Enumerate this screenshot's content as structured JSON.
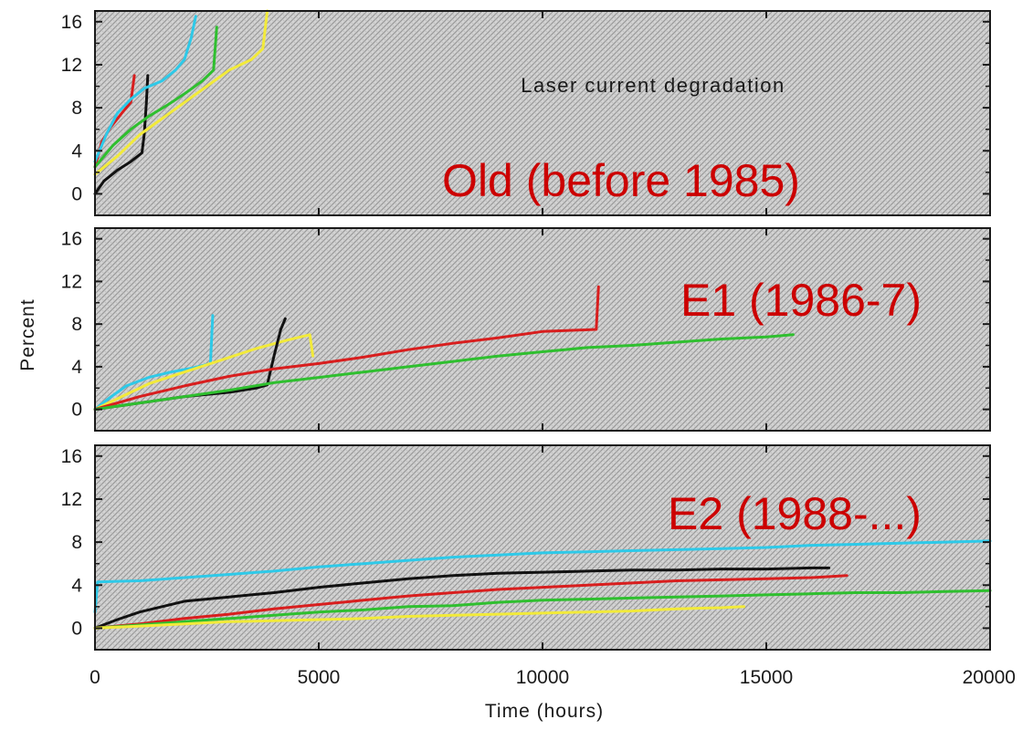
{
  "chart_data": {
    "type": "line",
    "xlabel": "Time (hours)",
    "ylabel": "Percent",
    "xlim": [
      0,
      20000
    ],
    "x_ticks": [
      0,
      5000,
      10000,
      15000,
      20000
    ],
    "ylim": [
      -2,
      17
    ],
    "y_ticks": [
      0,
      4,
      8,
      12,
      16
    ],
    "background": "grey hatched",
    "colors": {
      "red": "#d81e1e",
      "cyan": "#2ec9e8",
      "green": "#2fbf2f",
      "yellow": "#f2ea3a",
      "black": "#111111",
      "overlay": "#cc0000"
    },
    "panels": [
      {
        "annotation": "Laser current degradation",
        "overlay_label": "Old (before 1985)",
        "series": [
          {
            "color": "#111111",
            "points": [
              [
                0,
                0
              ],
              [
                200,
                1.2
              ],
              [
                500,
                2.2
              ],
              [
                800,
                3
              ],
              [
                1050,
                3.8
              ],
              [
                1100,
                5.5
              ],
              [
                1150,
                8.5
              ],
              [
                1180,
                11
              ]
            ]
          },
          {
            "color": "#d81e1e",
            "points": [
              [
                0,
                2.5
              ],
              [
                150,
                4.8
              ],
              [
                350,
                6.2
              ],
              [
                600,
                7.5
              ],
              [
                800,
                8.5
              ],
              [
                880,
                11
              ]
            ]
          },
          {
            "color": "#2ec9e8",
            "points": [
              [
                0,
                3
              ],
              [
                250,
                5.5
              ],
              [
                500,
                7.5
              ],
              [
                800,
                8.8
              ],
              [
                1100,
                9.8
              ],
              [
                1500,
                10.5
              ],
              [
                1800,
                11.5
              ],
              [
                2000,
                12.5
              ],
              [
                2150,
                14.5
              ],
              [
                2250,
                16.5
              ]
            ]
          },
          {
            "color": "#2fbf2f",
            "points": [
              [
                0,
                2.5
              ],
              [
                400,
                4.5
              ],
              [
                800,
                6
              ],
              [
                1200,
                7.2
              ],
              [
                1600,
                8.2
              ],
              [
                2000,
                9.3
              ],
              [
                2400,
                10.5
              ],
              [
                2650,
                11.5
              ],
              [
                2720,
                15.5
              ]
            ]
          },
          {
            "color": "#f2ea3a",
            "points": [
              [
                0,
                1.8
              ],
              [
                500,
                3.5
              ],
              [
                1000,
                5.5
              ],
              [
                1500,
                7
              ],
              [
                2000,
                8.5
              ],
              [
                2500,
                10
              ],
              [
                3000,
                11.5
              ],
              [
                3500,
                12.5
              ],
              [
                3750,
                13.5
              ],
              [
                3850,
                17
              ]
            ]
          }
        ]
      },
      {
        "overlay_label": "E1 (1986-7)",
        "series": [
          {
            "color": "#2ec9e8",
            "points": [
              [
                0,
                0
              ],
              [
                300,
                1
              ],
              [
                700,
                2.2
              ],
              [
                1200,
                3
              ],
              [
                1700,
                3.5
              ],
              [
                2200,
                3.9
              ],
              [
                2580,
                4.3
              ],
              [
                2630,
                8.8
              ]
            ]
          },
          {
            "color": "#f2ea3a",
            "points": [
              [
                0,
                0
              ],
              [
                600,
                1.2
              ],
              [
                1200,
                2.4
              ],
              [
                2000,
                3.5
              ],
              [
                2800,
                4.6
              ],
              [
                3600,
                5.7
              ],
              [
                4300,
                6.5
              ],
              [
                4800,
                7
              ],
              [
                4870,
                5
              ]
            ]
          },
          {
            "color": "#111111",
            "points": [
              [
                0,
                0
              ],
              [
                1000,
                0.6
              ],
              [
                2000,
                1.2
              ],
              [
                3000,
                1.6
              ],
              [
                3600,
                2
              ],
              [
                3850,
                2.3
              ],
              [
                4000,
                5
              ],
              [
                4150,
                7.5
              ],
              [
                4250,
                8.5
              ]
            ]
          },
          {
            "color": "#d81e1e",
            "points": [
              [
                0,
                0
              ],
              [
                1000,
                1.2
              ],
              [
                2000,
                2.2
              ],
              [
                3000,
                3.1
              ],
              [
                4000,
                3.8
              ],
              [
                5000,
                4.3
              ],
              [
                6000,
                4.9
              ],
              [
                7000,
                5.6
              ],
              [
                8000,
                6.2
              ],
              [
                9000,
                6.7
              ],
              [
                10000,
                7.3
              ],
              [
                11200,
                7.5
              ],
              [
                11250,
                11.5
              ]
            ]
          },
          {
            "color": "#2fbf2f",
            "points": [
              [
                0,
                0
              ],
              [
                1000,
                0.6
              ],
              [
                2000,
                1.2
              ],
              [
                3000,
                1.8
              ],
              [
                4000,
                2.5
              ],
              [
                5000,
                3
              ],
              [
                6000,
                3.5
              ],
              [
                7000,
                4
              ],
              [
                8000,
                4.5
              ],
              [
                9000,
                5
              ],
              [
                10000,
                5.4
              ],
              [
                11000,
                5.8
              ],
              [
                12000,
                6
              ],
              [
                13000,
                6.3
              ],
              [
                14000,
                6.6
              ],
              [
                15000,
                6.8
              ],
              [
                15600,
                7
              ]
            ]
          }
        ]
      },
      {
        "overlay_label": "E2 (1988-...)",
        "series": [
          {
            "color": "#2ec9e8",
            "points": [
              [
                0,
                1.5
              ],
              [
                60,
                4.3
              ],
              [
                1000,
                4.4
              ],
              [
                2000,
                4.7
              ],
              [
                3000,
                5
              ],
              [
                4000,
                5.3
              ],
              [
                5000,
                5.7
              ],
              [
                6000,
                6
              ],
              [
                7000,
                6.3
              ],
              [
                8000,
                6.6
              ],
              [
                9000,
                6.8
              ],
              [
                10000,
                7
              ],
              [
                11000,
                7.1
              ],
              [
                12000,
                7.2
              ],
              [
                13000,
                7.3
              ],
              [
                14000,
                7.4
              ],
              [
                15000,
                7.5
              ],
              [
                16000,
                7.7
              ],
              [
                17000,
                7.8
              ],
              [
                18000,
                7.9
              ],
              [
                19000,
                8
              ],
              [
                20000,
                8.1
              ]
            ]
          },
          {
            "color": "#111111",
            "points": [
              [
                0,
                0
              ],
              [
                500,
                0.8
              ],
              [
                1000,
                1.5
              ],
              [
                2000,
                2.5
              ],
              [
                3000,
                2.9
              ],
              [
                4000,
                3.3
              ],
              [
                5000,
                3.8
              ],
              [
                6000,
                4.2
              ],
              [
                7000,
                4.6
              ],
              [
                8000,
                4.9
              ],
              [
                9000,
                5.1
              ],
              [
                10000,
                5.2
              ],
              [
                11000,
                5.3
              ],
              [
                12000,
                5.4
              ],
              [
                13000,
                5.4
              ],
              [
                14000,
                5.5
              ],
              [
                15000,
                5.5
              ],
              [
                16000,
                5.6
              ],
              [
                16400,
                5.6
              ]
            ]
          },
          {
            "color": "#d81e1e",
            "points": [
              [
                0,
                0
              ],
              [
                1000,
                0.4
              ],
              [
                2000,
                0.9
              ],
              [
                3000,
                1.3
              ],
              [
                4000,
                1.8
              ],
              [
                5000,
                2.2
              ],
              [
                6000,
                2.6
              ],
              [
                7000,
                3
              ],
              [
                8000,
                3.3
              ],
              [
                9000,
                3.6
              ],
              [
                10000,
                3.8
              ],
              [
                11000,
                4
              ],
              [
                12000,
                4.2
              ],
              [
                13000,
                4.4
              ],
              [
                14000,
                4.5
              ],
              [
                15000,
                4.6
              ],
              [
                16000,
                4.7
              ],
              [
                16800,
                4.9
              ]
            ]
          },
          {
            "color": "#2fbf2f",
            "points": [
              [
                0,
                0
              ],
              [
                1000,
                0.3
              ],
              [
                2000,
                0.6
              ],
              [
                3000,
                0.9
              ],
              [
                4000,
                1.2
              ],
              [
                5000,
                1.5
              ],
              [
                6000,
                1.7
              ],
              [
                7000,
                2
              ],
              [
                8000,
                2.1
              ],
              [
                9000,
                2.4
              ],
              [
                10000,
                2.6
              ],
              [
                11000,
                2.7
              ],
              [
                12000,
                2.8
              ],
              [
                13000,
                2.9
              ],
              [
                14000,
                3
              ],
              [
                15000,
                3.1
              ],
              [
                16000,
                3.2
              ],
              [
                17000,
                3.3
              ],
              [
                18000,
                3.3
              ],
              [
                19000,
                3.4
              ],
              [
                20000,
                3.5
              ]
            ]
          },
          {
            "color": "#f2ea3a",
            "points": [
              [
                0,
                0
              ],
              [
                1000,
                0.2
              ],
              [
                2000,
                0.4
              ],
              [
                3000,
                0.6
              ],
              [
                4000,
                0.7
              ],
              [
                5000,
                0.8
              ],
              [
                6000,
                0.9
              ],
              [
                7000,
                1.1
              ],
              [
                8000,
                1.2
              ],
              [
                9000,
                1.3
              ],
              [
                10000,
                1.4
              ],
              [
                11000,
                1.5
              ],
              [
                12000,
                1.6
              ],
              [
                13000,
                1.8
              ],
              [
                14000,
                1.9
              ],
              [
                14500,
                2
              ]
            ]
          }
        ]
      }
    ]
  }
}
